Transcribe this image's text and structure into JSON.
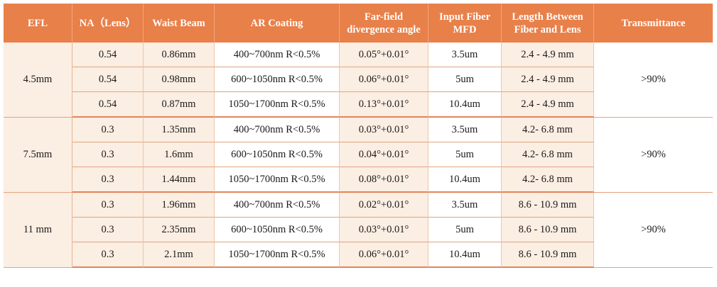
{
  "table": {
    "headers": [
      {
        "lines": [
          "EFL"
        ]
      },
      {
        "lines": [
          "NA（Lens）"
        ]
      },
      {
        "lines": [
          "Waist Beam"
        ]
      },
      {
        "lines": [
          "AR Coating"
        ]
      },
      {
        "lines": [
          "Far-field",
          "divergence angle"
        ]
      },
      {
        "lines": [
          "Input Fiber",
          "MFD"
        ]
      },
      {
        "lines": [
          "Length Between",
          "Fiber and Lens"
        ]
      },
      {
        "lines": [
          "Transmittance"
        ]
      }
    ],
    "groups": [
      {
        "efl": "4.5mm",
        "transmittance": ">90%",
        "rows": [
          {
            "na": "0.54",
            "waist_beam": "0.86mm",
            "ar_coating": "400~700nm R<0.5%",
            "divergence": "0.05°+0.01°",
            "mfd": "3.5um",
            "length": "2.4 - 4.9 mm"
          },
          {
            "na": "0.54",
            "waist_beam": "0.98mm",
            "ar_coating": "600~1050nm R<0.5%",
            "divergence": "0.06°+0.01°",
            "mfd": "5um",
            "length": "2.4 - 4.9 mm"
          },
          {
            "na": "0.54",
            "waist_beam": "0.87mm",
            "ar_coating": "1050~1700nm R<0.5%",
            "divergence": "0.13°+0.01°",
            "mfd": "10.4um",
            "length": "2.4 - 4.9 mm"
          }
        ]
      },
      {
        "efl": "7.5mm",
        "transmittance": ">90%",
        "rows": [
          {
            "na": "0.3",
            "waist_beam": "1.35mm",
            "ar_coating": "400~700nm R<0.5%",
            "divergence": "0.03°+0.01°",
            "mfd": "3.5um",
            "length": "4.2- 6.8 mm"
          },
          {
            "na": "0.3",
            "waist_beam": "1.6mm",
            "ar_coating": "600~1050nm R<0.5%",
            "divergence": "0.04°+0.01°",
            "mfd": "5um",
            "length": "4.2- 6.8 mm"
          },
          {
            "na": "0.3",
            "waist_beam": "1.44mm",
            "ar_coating": "1050~1700nm R<0.5%",
            "divergence": "0.08°+0.01°",
            "mfd": "10.4um",
            "length": "4.2- 6.8 mm"
          }
        ]
      },
      {
        "efl": "11 mm",
        "transmittance": ">90%",
        "rows": [
          {
            "na": "0.3",
            "waist_beam": "1.96mm",
            "ar_coating": "400~700nm R<0.5%",
            "divergence": "0.02°+0.01°",
            "mfd": "3.5um",
            "length": "8.6 - 10.9 mm"
          },
          {
            "na": "0.3",
            "waist_beam": "2.35mm",
            "ar_coating": "600~1050nm R<0.5%",
            "divergence": "0.03°+0.01°",
            "mfd": "5um",
            "length": "8.6 - 10.9 mm"
          },
          {
            "na": "0.3",
            "waist_beam": "2.1mm",
            "ar_coating": "1050~1700nm R<0.5%",
            "divergence": "0.06°+0.01°",
            "mfd": "10.4um",
            "length": "8.6 - 10.9 mm"
          }
        ]
      }
    ]
  },
  "colors": {
    "header_bg": "#e8804a",
    "header_text": "#ffffff",
    "shaded_cell": "#fbeee3",
    "border": "#e2a47e"
  }
}
